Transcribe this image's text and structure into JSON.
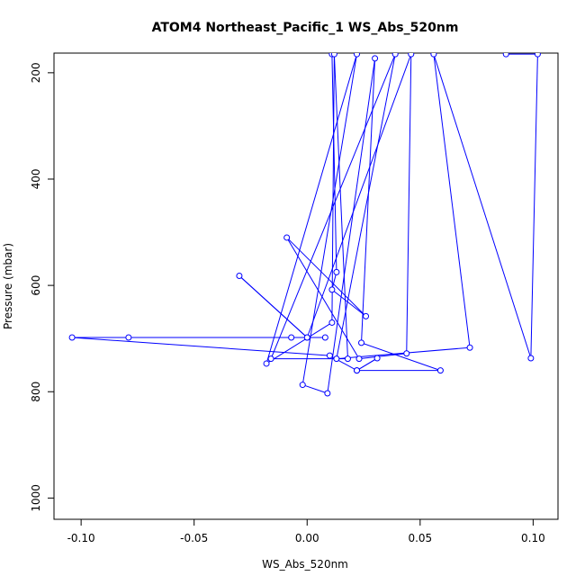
{
  "chart_data": {
    "type": "scatter",
    "title": "ATOM4 Northeast_Pacific_1 WS_Abs_520nm",
    "xlabel": "WS_Abs_520nm",
    "ylabel": "Pressure (mbar)",
    "xlim": [
      -0.112,
      0.111
    ],
    "ylim": [
      1040,
      163
    ],
    "y_reversed": true,
    "xticks": [
      -0.1,
      -0.05,
      0.0,
      0.05,
      0.1
    ],
    "xtick_labels": [
      "-0.10",
      "-0.05",
      "0.00",
      "0.05",
      "0.10"
    ],
    "yticks": [
      200,
      400,
      600,
      800,
      1000
    ],
    "ytick_labels": [
      "200",
      "400",
      "600",
      "800",
      "1000"
    ],
    "grid": false,
    "legend": "none",
    "series_color": "#0000ff",
    "marker": "open-circle",
    "connected": true,
    "points": [
      {
        "x": 0.011,
        "y": 165
      },
      {
        "x": 0.013,
        "y": 575
      },
      {
        "x": 0.011,
        "y": 608
      },
      {
        "x": 0.026,
        "y": 658
      },
      {
        "x": -0.009,
        "y": 510
      },
      {
        "x": 0.023,
        "y": 738
      },
      {
        "x": 0.044,
        "y": 728
      },
      {
        "x": 0.046,
        "y": 165
      },
      {
        "x": 0.0,
        "y": 698
      },
      {
        "x": -0.03,
        "y": 582
      },
      {
        "x": 0.0,
        "y": 698
      },
      {
        "x": -0.007,
        "y": 698
      },
      {
        "x": 0.008,
        "y": 698
      },
      {
        "x": -0.079,
        "y": 698
      },
      {
        "x": -0.104,
        "y": 698
      },
      {
        "x": 0.01,
        "y": 732
      },
      {
        "x": 0.022,
        "y": 760
      },
      {
        "x": 0.031,
        "y": 737
      },
      {
        "x": 0.022,
        "y": 760
      },
      {
        "x": 0.059,
        "y": 760
      },
      {
        "x": 0.024,
        "y": 708
      },
      {
        "x": 0.03,
        "y": 173
      },
      {
        "x": 0.009,
        "y": 803
      },
      {
        "x": -0.002,
        "y": 787
      },
      {
        "x": 0.022,
        "y": 165
      },
      {
        "x": -0.018,
        "y": 747
      },
      {
        "x": 0.011,
        "y": 670
      },
      {
        "x": 0.012,
        "y": 165
      },
      {
        "x": 0.018,
        "y": 738
      },
      {
        "x": -0.016,
        "y": 738
      },
      {
        "x": 0.039,
        "y": 165
      },
      {
        "x": 0.013,
        "y": 738
      },
      {
        "x": 0.072,
        "y": 717
      },
      {
        "x": 0.056,
        "y": 165
      },
      {
        "x": 0.099,
        "y": 737
      },
      {
        "x": 0.102,
        "y": 165
      },
      {
        "x": 0.088,
        "y": 165
      }
    ]
  }
}
